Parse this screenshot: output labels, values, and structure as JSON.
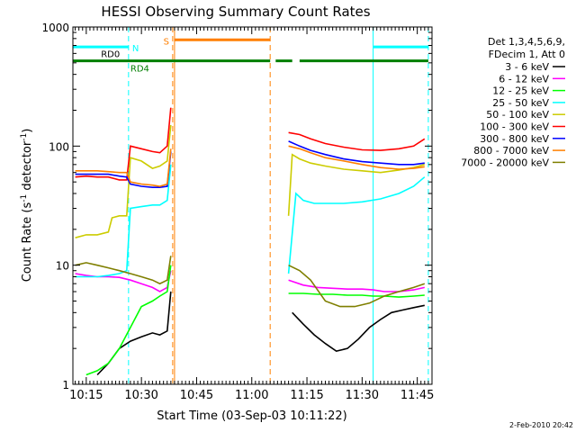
{
  "chart_data": {
    "type": "line",
    "title": "HESSI Observing Summary Count Rates",
    "xlabel": "Start Time (03-Sep-03 10:11:22)",
    "ylabel": "Count Rate (s⁻¹ detector⁻¹)",
    "ylabel_main": "Count Rate (s",
    "ylabel_exp": "-1",
    "ylabel_mid": " detector",
    "ylabel_end": ")",
    "yscale": "log",
    "ylim": [
      1,
      1000
    ],
    "xlim": [
      "10:11:22",
      "11:49:00"
    ],
    "x_ticks": [
      "10:15",
      "10:30",
      "10:45",
      "11:00",
      "11:15",
      "11:30",
      "11:45"
    ],
    "y_ticks": [
      "1",
      "10",
      "100",
      "1000"
    ],
    "grid": false,
    "legend_placement": "right",
    "legend_header": [
      "Det 1,3,4,5,6,9,",
      "FDecim 1, Att 0"
    ],
    "footer_date": "2-Feb-2010 20:42",
    "flags": [
      {
        "label": "N",
        "color": "#00ffff",
        "segments": [
          [
            "10:11:22",
            "10:26:30"
          ],
          [
            "11:33:00",
            "11:48:00"
          ]
        ],
        "y": 680
      },
      {
        "label": "S",
        "color": "#ff7f00",
        "segments": [
          [
            "10:39:00",
            "11:05:00"
          ]
        ],
        "y": 780
      },
      {
        "label": "RD0",
        "color": "#007f00",
        "segments": [
          [
            "10:11:22",
            "11:05:00"
          ],
          [
            "11:06:30",
            "11:11:00"
          ],
          [
            "11:13:00",
            "11:48:00"
          ]
        ],
        "y": 520
      },
      {
        "label": "RD4",
        "color": "#007f00",
        "segments": [],
        "y": 470
      }
    ],
    "event_lines": [
      {
        "time": "10:26:30",
        "color": "#00ffff",
        "style": "dashed"
      },
      {
        "time": "10:38:30",
        "color": "#ff7f00",
        "style": "dashed"
      },
      {
        "time": "10:39:00",
        "color": "#ff7f00",
        "style": "solid"
      },
      {
        "time": "11:05:00",
        "color": "#ff7f00",
        "style": "dashed"
      },
      {
        "time": "11:33:00",
        "color": "#00ffff",
        "style": "solid"
      },
      {
        "time": "11:48:00",
        "color": "#00ffff",
        "style": "dashed"
      }
    ],
    "series": [
      {
        "name": "3 - 6 keV",
        "color": "#000000",
        "segments": [
          {
            "x": [
              "10:18",
              "10:21",
              "10:24",
              "10:27",
              "10:30",
              "10:33",
              "10:35",
              "10:37",
              "10:38"
            ],
            "y": [
              1.2,
              1.5,
              2.0,
              2.3,
              2.5,
              2.7,
              2.6,
              2.8,
              6.0
            ]
          },
          {
            "x": [
              "11:11",
              "11:14",
              "11:17",
              "11:20",
              "11:23",
              "11:26",
              "11:29",
              "11:32",
              "11:35",
              "11:38",
              "11:41",
              "11:44",
              "11:47"
            ],
            "y": [
              4.0,
              3.2,
              2.6,
              2.2,
              1.9,
              2.0,
              2.4,
              3.0,
              3.5,
              4.0,
              4.2,
              4.4,
              4.6
            ]
          }
        ]
      },
      {
        "name": "6 - 12 keV",
        "color": "#ff00ff",
        "segments": [
          {
            "x": [
              "10:12",
              "10:15",
              "10:18",
              "10:21",
              "10:24",
              "10:27",
              "10:30",
              "10:33",
              "10:35",
              "10:37",
              "10:38"
            ],
            "y": [
              8.5,
              8.2,
              8.0,
              8.0,
              7.9,
              7.5,
              7.0,
              6.5,
              6.0,
              6.5,
              9.0
            ]
          },
          {
            "x": [
              "11:10",
              "11:14",
              "11:18",
              "11:22",
              "11:26",
              "11:30",
              "11:33",
              "11:36",
              "11:40",
              "11:44",
              "11:47"
            ],
            "y": [
              7.5,
              6.8,
              6.5,
              6.4,
              6.3,
              6.3,
              6.2,
              6.0,
              6.0,
              6.2,
              6.5
            ]
          }
        ]
      },
      {
        "name": "12 - 25 keV",
        "color": "#00ff00",
        "segments": [
          {
            "x": [
              "10:15",
              "10:18",
              "10:21",
              "10:24",
              "10:27",
              "10:30",
              "10:33",
              "10:35",
              "10:37",
              "10:38"
            ],
            "y": [
              1.2,
              1.3,
              1.5,
              2.0,
              3.0,
              4.5,
              5.0,
              5.5,
              6.0,
              10.0
            ]
          },
          {
            "x": [
              "11:10",
              "11:14",
              "11:18",
              "11:22",
              "11:26",
              "11:30",
              "11:33",
              "11:36",
              "11:40",
              "11:44",
              "11:47"
            ],
            "y": [
              5.8,
              5.8,
              5.7,
              5.7,
              5.6,
              5.6,
              5.5,
              5.5,
              5.4,
              5.5,
              5.6
            ]
          }
        ]
      },
      {
        "name": "25 - 50 keV",
        "color": "#00ffff",
        "segments": [
          {
            "x": [
              "10:12",
              "10:15",
              "10:18",
              "10:21",
              "10:24",
              "10:26",
              "10:27",
              "10:30",
              "10:33",
              "10:35",
              "10:37",
              "10:38"
            ],
            "y": [
              8.0,
              8.0,
              8.0,
              8.2,
              8.5,
              9.0,
              30.0,
              31.0,
              32.0,
              32.0,
              35.0,
              70.0
            ]
          },
          {
            "x": [
              "11:10",
              "11:12",
              "11:14",
              "11:17",
              "11:20",
              "11:25",
              "11:30",
              "11:35",
              "11:40",
              "11:44",
              "11:47"
            ],
            "y": [
              8.5,
              40.0,
              35.0,
              33.0,
              33.0,
              33.0,
              34.0,
              36.0,
              40.0,
              46.0,
              55.0
            ]
          }
        ]
      },
      {
        "name": "50 - 100 keV",
        "color": "#cccc00",
        "segments": [
          {
            "x": [
              "10:12",
              "10:15",
              "10:18",
              "10:21",
              "10:22",
              "10:24",
              "10:26",
              "10:27",
              "10:30",
              "10:33",
              "10:35",
              "10:37",
              "10:38"
            ],
            "y": [
              17.0,
              18.0,
              18.0,
              19.0,
              25.0,
              26.0,
              26.0,
              80.0,
              75.0,
              65.0,
              68.0,
              75.0,
              150.0
            ]
          },
          {
            "x": [
              "11:10",
              "11:11",
              "11:13",
              "11:16",
              "11:20",
              "11:25",
              "11:30",
              "11:35",
              "11:40",
              "11:44",
              "11:47"
            ],
            "y": [
              26.0,
              85.0,
              78.0,
              72.0,
              68.0,
              64.0,
              62.0,
              60.0,
              63.0,
              66.0,
              70.0
            ]
          }
        ]
      },
      {
        "name": "100 - 300 keV",
        "color": "#ff0000",
        "segments": [
          {
            "x": [
              "10:12",
              "10:15",
              "10:18",
              "10:21",
              "10:24",
              "10:26",
              "10:27",
              "10:30",
              "10:33",
              "10:35",
              "10:37",
              "10:38"
            ],
            "y": [
              55.0,
              56.0,
              55.0,
              55.0,
              52.0,
              52.0,
              100.0,
              95.0,
              90.0,
              88.0,
              100.0,
              210.0
            ]
          },
          {
            "x": [
              "11:10",
              "11:13",
              "11:16",
              "11:20",
              "11:25",
              "11:30",
              "11:35",
              "11:40",
              "11:44",
              "11:47"
            ],
            "y": [
              130.0,
              125.0,
              115.0,
              105.0,
              98.0,
              93.0,
              92.0,
              95.0,
              100.0,
              115.0
            ]
          }
        ]
      },
      {
        "name": "300 - 800 keV",
        "color": "#0000ff",
        "segments": [
          {
            "x": [
              "10:12",
              "10:15",
              "10:18",
              "10:21",
              "10:24",
              "10:26",
              "10:27",
              "10:30",
              "10:33",
              "10:35",
              "10:37",
              "10:38"
            ],
            "y": [
              58.0,
              58.0,
              58.0,
              58.0,
              56.0,
              55.0,
              48.0,
              46.0,
              45.0,
              45.0,
              46.0,
              90.0
            ]
          },
          {
            "x": [
              "11:10",
              "11:13",
              "11:16",
              "11:20",
              "11:25",
              "11:30",
              "11:35",
              "11:40",
              "11:44",
              "11:47"
            ],
            "y": [
              110.0,
              100.0,
              92.0,
              85.0,
              78.0,
              74.0,
              72.0,
              70.0,
              70.0,
              72.0
            ]
          }
        ]
      },
      {
        "name": "800 - 7000 keV",
        "color": "#ff7f00",
        "segments": [
          {
            "x": [
              "10:12",
              "10:15",
              "10:18",
              "10:21",
              "10:24",
              "10:26",
              "10:27",
              "10:30",
              "10:33",
              "10:35",
              "10:37",
              "10:38"
            ],
            "y": [
              62.0,
              62.0,
              62.0,
              61.0,
              60.0,
              60.0,
              50.0,
              48.0,
              47.0,
              46.0,
              48.0,
              95.0
            ]
          },
          {
            "x": [
              "11:10",
              "11:13",
              "11:16",
              "11:20",
              "11:25",
              "11:30",
              "11:35",
              "11:40",
              "11:44",
              "11:47"
            ],
            "y": [
              100.0,
              95.0,
              88.0,
              80.0,
              75.0,
              70.0,
              66.0,
              64.0,
              65.0,
              67.0
            ]
          }
        ]
      },
      {
        "name": "7000 - 20000 keV",
        "color": "#7f7f00",
        "segments": [
          {
            "x": [
              "10:12",
              "10:15",
              "10:18",
              "10:21",
              "10:24",
              "10:27",
              "10:30",
              "10:33",
              "10:35",
              "10:37",
              "10:38"
            ],
            "y": [
              10.0,
              10.5,
              10.0,
              9.5,
              9.0,
              8.5,
              8.0,
              7.5,
              7.0,
              7.5,
              12.0
            ]
          },
          {
            "x": [
              "11:10",
              "11:13",
              "11:16",
              "11:20",
              "11:24",
              "11:28",
              "11:32",
              "11:36",
              "11:40",
              "11:44",
              "11:47"
            ],
            "y": [
              10.0,
              9.0,
              7.5,
              5.0,
              4.5,
              4.5,
              4.8,
              5.5,
              6.0,
              6.5,
              7.0
            ]
          }
        ]
      }
    ]
  }
}
